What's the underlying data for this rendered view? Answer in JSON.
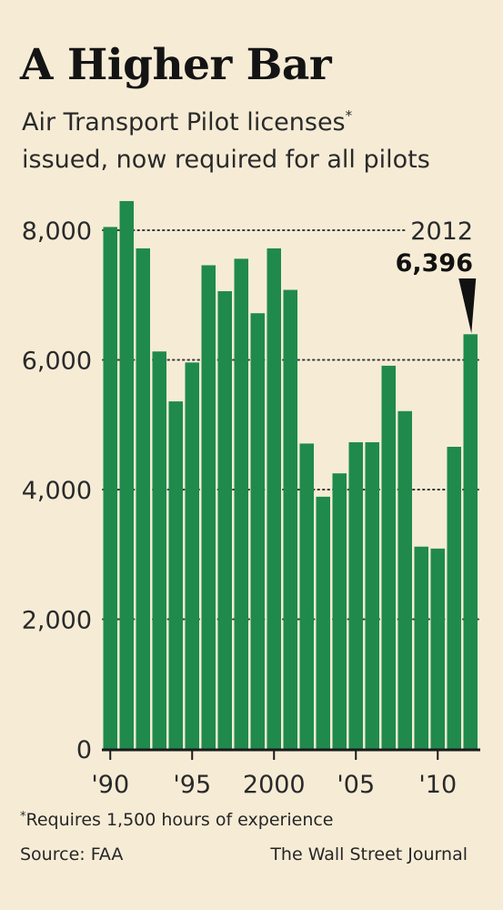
{
  "title": "A Higher Bar",
  "subtitle_line1": "Air Transport Pilot licenses",
  "subtitle_asterisk": "*",
  "subtitle_line2": "issued, now required for all pilots",
  "footnote_asterisk": "*",
  "footnote_text": "Requires 1,500 hours of experience",
  "source": "Source: FAA",
  "credit": "The Wall Street Journal",
  "colors": {
    "bar": "#1f8a4c",
    "background": "#f6ecd6",
    "text": "#1f1f1f"
  },
  "chart_data": {
    "type": "bar",
    "title": "A Higher Bar",
    "subtitle": "Air Transport Pilot licenses* issued, now required for all pilots",
    "xlabel": "",
    "ylabel": "",
    "ylim": [
      0,
      8000
    ],
    "yticks": [
      0,
      2000,
      4000,
      6000,
      8000
    ],
    "ytick_labels": [
      "0",
      "2,000",
      "4,000",
      "6,000",
      "8,000"
    ],
    "xtick_labels": [
      "'90",
      "'95",
      "2000",
      "'05",
      "'10"
    ],
    "grid": "dotted horizontal",
    "categories": [
      "1990",
      "1991",
      "1992",
      "1993",
      "1994",
      "1995",
      "1996",
      "1997",
      "1998",
      "1999",
      "2000",
      "2001",
      "2002",
      "2003",
      "2004",
      "2005",
      "2006",
      "2007",
      "2008",
      "2009",
      "2010",
      "2011",
      "2012"
    ],
    "values": [
      8050,
      8450,
      7720,
      6130,
      5360,
      5960,
      7460,
      7060,
      7560,
      6720,
      7720,
      7080,
      4710,
      3890,
      4250,
      4730,
      4730,
      5910,
      5210,
      3120,
      3090,
      4660,
      6396
    ],
    "annotation": {
      "year_label": "2012",
      "value_label": "6,396"
    }
  }
}
